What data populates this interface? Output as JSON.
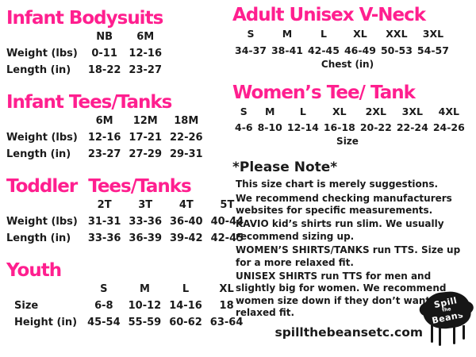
{
  "page": {
    "website": "spillthebeansetc.com",
    "accent_color": "#ff1f8f",
    "ink_color": "#1a1a1a"
  },
  "tables": [
    {
      "id": "infant-bodysuits",
      "title": "Infant Bodysuits",
      "columns": [
        "NB",
        "6M"
      ],
      "rows": [
        {
          "label": "Weight (lbs)",
          "values": [
            "0-11",
            "12-16"
          ]
        },
        {
          "label": "Length (in)",
          "values": [
            "18-22",
            "23-27"
          ]
        }
      ],
      "footer": ""
    },
    {
      "id": "infant-tees",
      "title": "Infant Tees/Tanks",
      "columns": [
        "6M",
        "12M",
        "18M"
      ],
      "rows": [
        {
          "label": "Weight (lbs)",
          "values": [
            "12-16",
            "17-21",
            "22-26"
          ]
        },
        {
          "label": "Length (in)",
          "values": [
            "23-27",
            "27-29",
            "29-31"
          ]
        }
      ],
      "footer": ""
    },
    {
      "id": "toddler-tees",
      "title": "Toddler  Tees/Tanks",
      "columns": [
        "2T",
        "3T",
        "4T",
        "5T"
      ],
      "rows": [
        {
          "label": "Weight (lbs)",
          "values": [
            "31-31",
            "33-36",
            "36-40",
            "40-44"
          ]
        },
        {
          "label": "Length (in)",
          "values": [
            "33-36",
            "36-39",
            "39-42",
            "42-45"
          ]
        }
      ],
      "footer": ""
    },
    {
      "id": "youth",
      "title": "Youth",
      "columns": [
        "S",
        "M",
        "L",
        "XL"
      ],
      "rows": [
        {
          "label": "Size",
          "values": [
            "6-8",
            "10-12",
            "14-16",
            "18"
          ]
        },
        {
          "label": "Height (in)",
          "values": [
            "45-54",
            "55-59",
            "60-62",
            "63-64"
          ]
        }
      ],
      "footer": ""
    },
    {
      "id": "adult-vneck",
      "title": "Adult Unisex V-Neck",
      "columns": [
        "S",
        "M",
        "L",
        "XL",
        "XXL",
        "3XL"
      ],
      "rows": [
        {
          "label": "",
          "values": [
            "34-37",
            "38-41",
            "42-45",
            "46-49",
            "50-53",
            "54-57"
          ]
        }
      ],
      "footer": "Chest (in)"
    },
    {
      "id": "womens-tee",
      "title": "Women’s Tee/ Tank",
      "columns": [
        "S",
        "M",
        "L",
        "XL",
        "2XL",
        "3XL",
        "4XL"
      ],
      "rows": [
        {
          "label": "",
          "values": [
            "4-6",
            "8-10",
            "12-14",
            "16-18",
            "20-22",
            "22-24",
            "24-26"
          ]
        }
      ],
      "footer": "Size"
    }
  ],
  "note": {
    "title": "*Please Note*",
    "lines": [
      {
        "bold": "",
        "text": "This size chart is merely suggestions."
      },
      {
        "bold": "",
        "text": "We recommend checking manufacturers websites for specific measurements."
      },
      {
        "bold": "KAVIO",
        "text": " kid’s shirts run slim. We usually recommend sizing up."
      },
      {
        "bold": "WOMEN’S SHIRTS/TANKS",
        "text": " run TTS. Size up for a more relaxed fit."
      },
      {
        "bold": "UNISEX SHIRTS",
        "text": " run TTS for men and slightly big for women. We recommend women size down if they don’t want a relaxed fit."
      }
    ]
  },
  "logo": {
    "text": [
      "Spill",
      "the",
      "Beans"
    ]
  }
}
